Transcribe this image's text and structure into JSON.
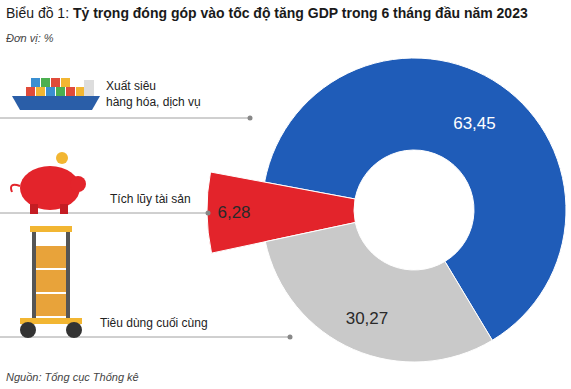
{
  "chart_data": {
    "type": "pie",
    "title": "Biểu đồ 1: Tỷ trọng đóng góp vào tốc độ tăng GDP trong 6 tháng đầu năm 2023",
    "subtitle": "Đơn vị: %",
    "source": "Nguồn: Tổng cục Thống kê",
    "categories": [
      "Xuất siêu\nhàng hóa, dịch vụ",
      "Tích lũy tài sản",
      "Tiêu dùng cuối cùng"
    ],
    "values": [
      63.45,
      6.28,
      30.27
    ],
    "value_labels": [
      "63,45",
      "6,28",
      "30,27"
    ],
    "colors": [
      "#1f5cb8",
      "#e3242b",
      "#c9c9c9"
    ],
    "data_labels": true
  }
}
